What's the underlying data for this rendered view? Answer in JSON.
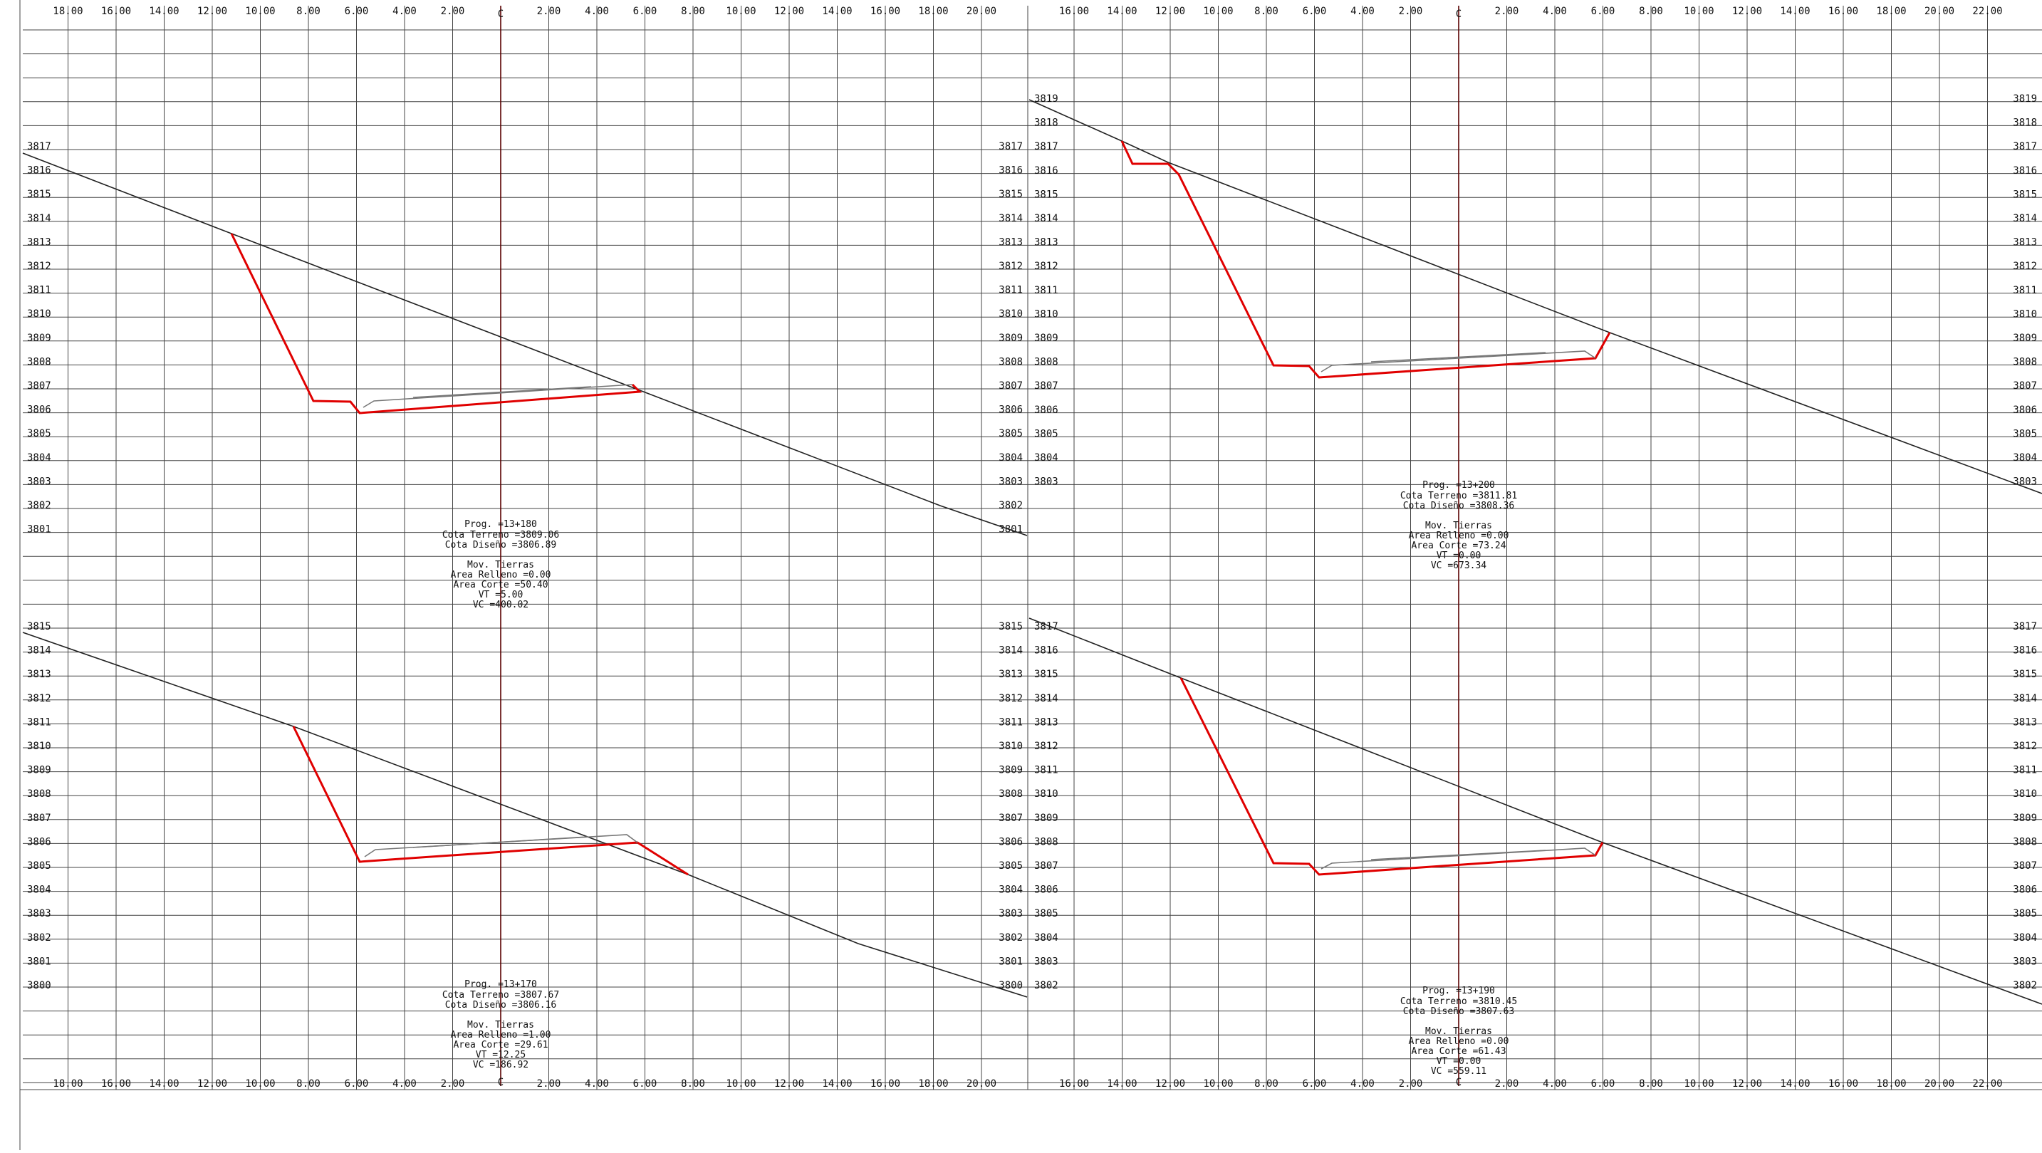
{
  "drawing": {
    "top_tick_labels_left": [
      "18.00",
      "16.00",
      "14.00",
      "12.00",
      "10.00",
      "8.00",
      "6.00",
      "4.00",
      "2.00",
      "2.00",
      "4.00",
      "6.00",
      "8.00",
      "10.00",
      "12.00",
      "14.00",
      "16.00",
      "18.00",
      "20.00"
    ],
    "top_tick_labels_right": [
      "16.00",
      "14.00",
      "12.00",
      "10.00",
      "8.00",
      "6.00",
      "4.00",
      "2.00",
      "2.00",
      "4.00",
      "6.00",
      "8.00",
      "10.00",
      "12.00",
      "14.00",
      "16.00",
      "18.00",
      "20.00",
      "22.00"
    ],
    "axis_letter": "C",
    "sections": [
      {
        "id": "s180",
        "prog": "Prog. =13+180",
        "cota_terreno": "Cota Terreno =3809.06",
        "cota_diseno": "Cota Diseño =3806.89",
        "mov_title": "Mov. Tierras",
        "area_relleno": "Area Relleno =0.00",
        "area_corte": "Area Corte =50.40",
        "vt": "VT =5.00",
        "vc": "VC =400.02",
        "elev_left": [
          "3817",
          "3816",
          "3815",
          "3814",
          "3813",
          "3812",
          "3811",
          "3810",
          "3809",
          "3808",
          "3807",
          "3806",
          "3805",
          "3804",
          "3803",
          "3802",
          "3801"
        ],
        "elev_right": [
          "3817",
          "3816",
          "3815",
          "3814",
          "3813",
          "3812",
          "3811",
          "3810",
          "3809",
          "3808",
          "3807",
          "3806",
          "3805",
          "3804",
          "3803",
          "3802",
          "3801"
        ]
      },
      {
        "id": "s200",
        "prog": "Prog. =13+200",
        "cota_terreno": "Cota Terreno =3811.81",
        "cota_diseno": "Cota Diseño =3808.36",
        "mov_title": "Mov. Tierras",
        "area_relleno": "Area Relleno =0.00",
        "area_corte": "Area Corte =73.24",
        "vt": "VT =0.00",
        "vc": "VC =673.34",
        "elev_left": [
          "3819",
          "3818",
          "3817",
          "3816",
          "3815",
          "3814",
          "3813",
          "3812",
          "3811",
          "3810",
          "3809",
          "3808",
          "3807",
          "3806",
          "3805",
          "3804",
          "3803"
        ],
        "elev_right": [
          "3819",
          "3818",
          "3817",
          "3816",
          "3815",
          "3814",
          "3813",
          "3812",
          "3811",
          "3810",
          "3809",
          "3808",
          "3807",
          "3806",
          "3805",
          "3804",
          "3803"
        ]
      },
      {
        "id": "s170",
        "prog": "Prog. =13+170",
        "cota_terreno": "Cota Terreno =3807.67",
        "cota_diseno": "Cota Diseño =3806.16",
        "mov_title": "Mov. Tierras",
        "area_relleno": "Area Relleno =1.00",
        "area_corte": "Area Corte =29.61",
        "vt": "VT =12.25",
        "vc": "VC =186.92",
        "elev_left": [
          "3815",
          "3814",
          "3813",
          "3812",
          "3811",
          "3810",
          "3809",
          "3808",
          "3807",
          "3806",
          "3805",
          "3804",
          "3803",
          "3802",
          "3801",
          "3800"
        ],
        "elev_right": [
          "3815",
          "3814",
          "3813",
          "3812",
          "3811",
          "3810",
          "3809",
          "3808",
          "3807",
          "3806",
          "3805",
          "3804",
          "3803",
          "3802",
          "3801",
          "3800"
        ]
      },
      {
        "id": "s190",
        "prog": "Prog. =13+190",
        "cota_terreno": "Cota Terreno =3810.45",
        "cota_diseno": "Cota Diseño =3807.63",
        "mov_title": "Mov. Tierras",
        "area_relleno": "Area Relleno =0.00",
        "area_corte": "Area Corte =61.43",
        "vt": "VT =0.00",
        "vc": "VC =559.11",
        "elev_left": [
          "3817",
          "3816",
          "3815",
          "3814",
          "3813",
          "3812",
          "3811",
          "3810",
          "3809",
          "3808",
          "3807",
          "3806",
          "3805",
          "3804",
          "3803",
          "3802"
        ],
        "elev_right": [
          "3817",
          "3816",
          "3815",
          "3814",
          "3813",
          "3812",
          "3811",
          "3810",
          "3809",
          "3808",
          "3807",
          "3806",
          "3805",
          "3804",
          "3803",
          "3802"
        ]
      }
    ],
    "colors": {
      "ground": "#222222",
      "design": "#e00000",
      "grid": "#444444",
      "axis": "#5a0000",
      "pavement": "#777777"
    }
  }
}
